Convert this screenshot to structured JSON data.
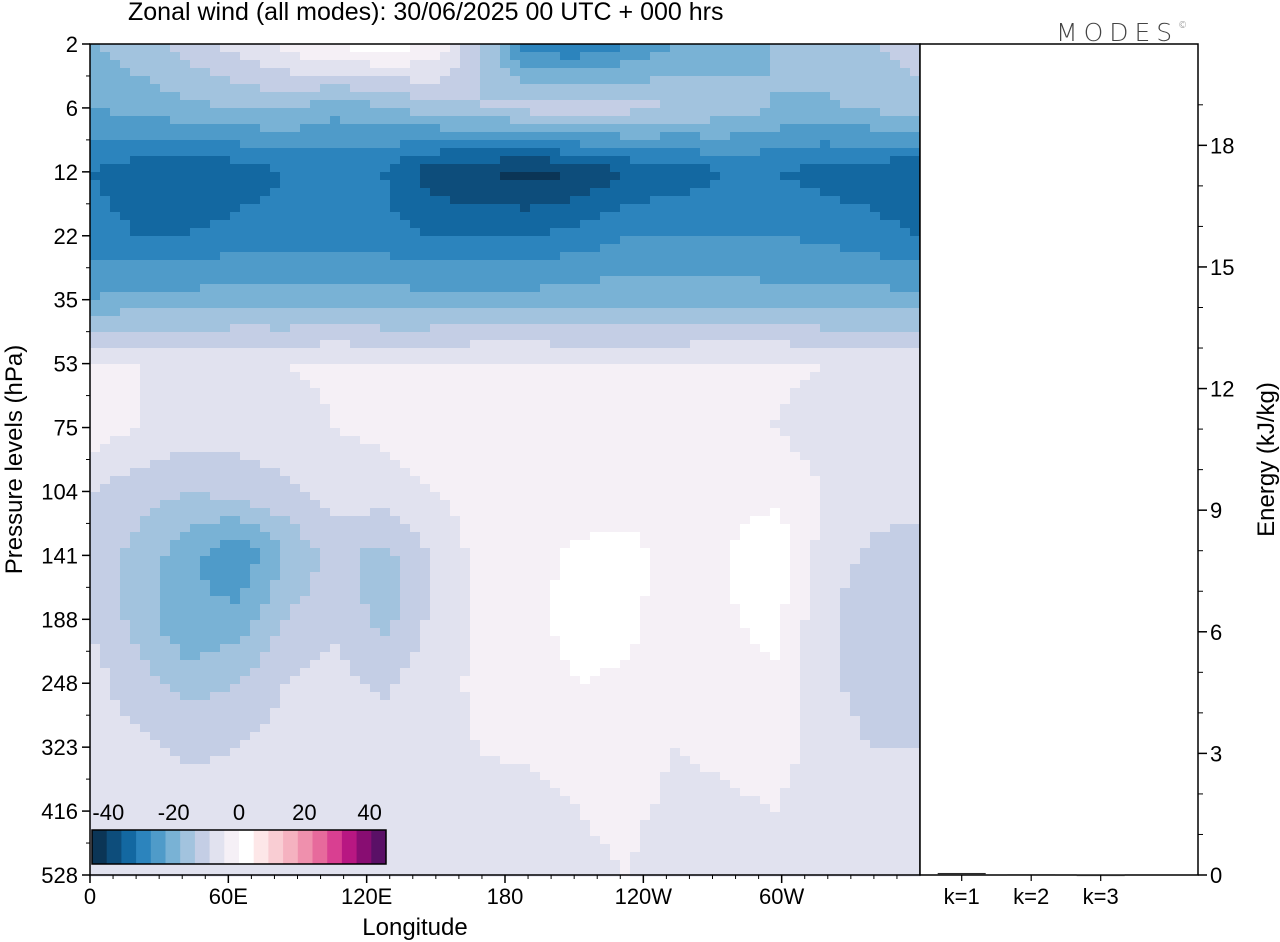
{
  "header": {
    "title": "Zonal wind (all modes):  30/06/2025  00 UTC  + 000 hrs",
    "brand": "MODES",
    "brand_mark": "©"
  },
  "chart_data": [
    {
      "type": "heatmap",
      "title": "Zonal wind (all modes):  30/06/2025  00 UTC  + 000 hrs",
      "xlabel": "Longitude",
      "ylabel": "Pressure levels (hPa)",
      "x_ticks": [
        "0",
        "60E",
        "120E",
        "180",
        "120W",
        "60W"
      ],
      "x_tick_lon": [
        0,
        60,
        120,
        180,
        240,
        300
      ],
      "xlim": [
        0,
        360
      ],
      "y_ticks": [
        "2",
        "6",
        "12",
        "22",
        "35",
        "53",
        "75",
        "104",
        "141",
        "188",
        "248",
        "323",
        "416",
        "528"
      ],
      "ylim": [
        2,
        528
      ],
      "colorbar": {
        "labels": [
          "-40",
          "-20",
          "0",
          "20",
          "40"
        ],
        "label_values": [
          -40,
          -20,
          0,
          20,
          40
        ],
        "range": [
          -45,
          45
        ],
        "step": 5,
        "colors": [
          "#0b3556",
          "#0d4d7b",
          "#1368a1",
          "#2c84bd",
          "#4f9bc9",
          "#79b2d5",
          "#a2c3de",
          "#c4cee5",
          "#e1e2ef",
          "#f5f0f6",
          "#ffffff",
          "#fde7e8",
          "#f9cdd3",
          "#f5b2c0",
          "#ef90ad",
          "#e76a9c",
          "#d93f91",
          "#b81782",
          "#880d72",
          "#5a1066"
        ]
      },
      "field_rows": [
        {
          "level": "2",
          "values": [
            -15,
            -12,
            -8,
            -3,
            2,
            6,
            8,
            5,
            -10,
            -28,
            -30,
            -25,
            -20,
            -18,
            -15,
            -12,
            -10,
            -8
          ]
        },
        {
          "level": "6",
          "values": [
            -20,
            -18,
            -16,
            -15,
            -14,
            -18,
            -16,
            -12,
            -10,
            -8,
            -6,
            -8,
            -10,
            -12,
            -15,
            -16,
            -14,
            -12
          ]
        },
        {
          "level": "12",
          "values": [
            -30,
            -33,
            -35,
            -33,
            -30,
            -30,
            -30,
            -38,
            -40,
            -42,
            -40,
            -35,
            -33,
            -30,
            -30,
            -32,
            -33,
            -35
          ]
        },
        {
          "level": "22",
          "values": [
            -28,
            -30,
            -30,
            -28,
            -28,
            -27,
            -28,
            -30,
            -30,
            -30,
            -28,
            -25,
            -25,
            -25,
            -25,
            -26,
            -28,
            -30
          ]
        },
        {
          "level": "35",
          "values": [
            -20,
            -18,
            -18,
            -17,
            -18,
            -18,
            -18,
            -18,
            -18,
            -18,
            -17,
            -17,
            -17,
            -17,
            -18,
            -18,
            -18,
            -18
          ]
        },
        {
          "level": "53",
          "values": [
            1,
            0,
            -1,
            -1,
            0,
            1,
            0,
            0,
            1,
            1,
            0,
            0,
            0,
            1,
            1,
            0,
            0,
            0
          ]
        },
        {
          "level": "75",
          "values": [
            3,
            0,
            -2,
            -3,
            -2,
            0,
            1,
            3,
            5,
            5,
            4,
            2,
            2,
            2,
            0,
            -2,
            -5,
            -2
          ]
        },
        {
          "level": "104",
          "values": [
            -5,
            -8,
            -10,
            -8,
            -6,
            -3,
            -2,
            0,
            2,
            3,
            2,
            1,
            0,
            2,
            3,
            0,
            -3,
            -2
          ]
        },
        {
          "level": "141",
          "values": [
            -6,
            -12,
            -18,
            -25,
            -15,
            -8,
            -12,
            -5,
            2,
            3,
            6,
            8,
            2,
            5,
            10,
            -2,
            -6,
            -8
          ]
        },
        {
          "level": "188",
          "values": [
            -5,
            -12,
            -20,
            -18,
            -10,
            -6,
            -12,
            -4,
            1,
            3,
            8,
            7,
            0,
            4,
            7,
            -4,
            -8,
            -10
          ]
        },
        {
          "level": "248",
          "values": [
            -3,
            -8,
            -12,
            -10,
            -5,
            -3,
            -6,
            -2,
            1,
            2,
            5,
            4,
            0,
            3,
            4,
            -3,
            -8,
            -7
          ]
        },
        {
          "level": "323",
          "values": [
            -2,
            -4,
            -6,
            -5,
            -3,
            -2,
            -3,
            -1,
            0,
            1,
            2,
            2,
            0,
            1,
            2,
            -2,
            -5,
            -5
          ]
        },
        {
          "level": "416",
          "values": [
            -1,
            -2,
            -3,
            -2,
            -1,
            -1,
            -1,
            0,
            -1,
            -2,
            0,
            1,
            -1,
            -1,
            0,
            -2,
            -4,
            -4
          ]
        },
        {
          "level": "528",
          "values": [
            0,
            0,
            -1,
            0,
            0,
            0,
            0,
            -1,
            -2,
            -2,
            -1,
            0,
            -3,
            -1,
            -1,
            -2,
            -3,
            -3
          ]
        }
      ]
    },
    {
      "type": "bar",
      "ylabel": "Energy (kJ/kg)",
      "categories": [
        "k=1",
        "k=2",
        "k=3"
      ],
      "values": [
        0.05,
        0.02,
        0.01
      ],
      "ylim": [
        0,
        20.5
      ],
      "y_ticks": [
        "0",
        "3",
        "6",
        "9",
        "12",
        "15",
        "18"
      ],
      "y_tick_values": [
        0,
        3,
        6,
        9,
        12,
        15,
        18
      ]
    }
  ]
}
